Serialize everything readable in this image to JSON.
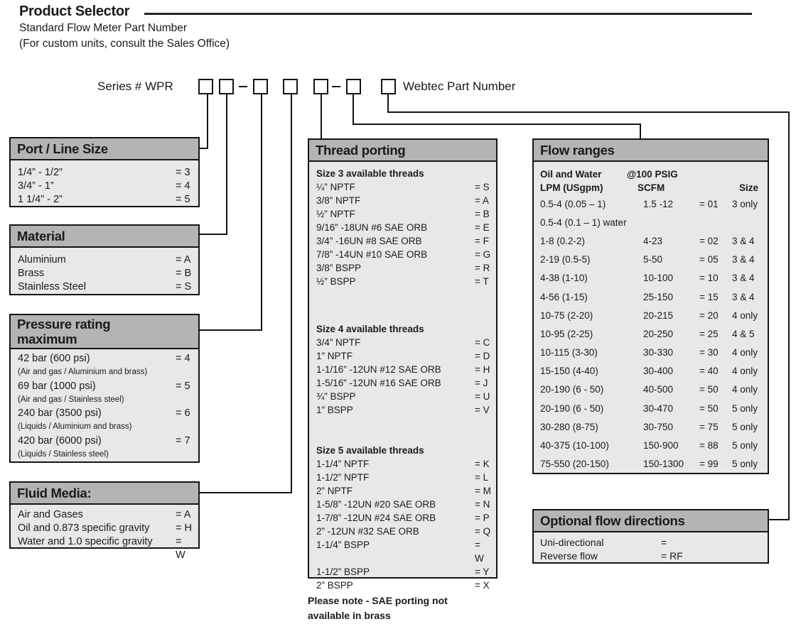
{
  "page": {
    "title": "Product Selector",
    "subtitle1": "Standard Flow Meter Part Number",
    "subtitle2": "(For custom units, consult the Sales Office)",
    "series_label": "Series #  WPR",
    "webtec_label": "Webtec Part Number",
    "note_line1": "Please note - SAE porting not",
    "note_line2": "available in brass"
  },
  "colors": {
    "table_header_bg": "#b4b4b4",
    "table_body_bg": "#e8e8e8",
    "line_color": "#151515"
  },
  "tables": {
    "port_line_size": {
      "title": "Port / Line Size",
      "rows": [
        {
          "label": "1/4” - 1/2”",
          "value": "= 3"
        },
        {
          "label": "3/4” - 1”",
          "value": "= 4"
        },
        {
          "label": "1 1/4” - 2”",
          "value": "= 5"
        }
      ]
    },
    "material": {
      "title": "Material",
      "rows": [
        {
          "label": "Aluminium",
          "value": "= A"
        },
        {
          "label": "Brass",
          "value": "= B"
        },
        {
          "label": "Stainless Steel",
          "value": "= S"
        }
      ]
    },
    "pressure_rating": {
      "title_line1": "Pressure rating",
      "title_line2": "maximum",
      "rows": [
        {
          "label": "42 bar (600 psi)",
          "value": "= 4",
          "note": "(Air and gas / Aluminium and brass)"
        },
        {
          "label": "69 bar (1000 psi)",
          "value": "= 5",
          "note": "(Air and gas / Stainless steel)"
        },
        {
          "label": "240 bar (3500 psi)",
          "value": "= 6",
          "note": "(Liquids / Aluminium and brass)"
        },
        {
          "label": "420 bar (6000 psi)",
          "value": "= 7",
          "note": "(Liquids / Stainless steel)"
        }
      ]
    },
    "fluid_media": {
      "title": "Fluid Media:",
      "rows": [
        {
          "label": "Air and Gases",
          "value": "= A"
        },
        {
          "label": "Oil and 0.873 specific gravity",
          "value": "= H"
        },
        {
          "label": "Water and 1.0 specific gravity",
          "value": "= W"
        }
      ]
    },
    "thread_porting": {
      "title": "Thread porting",
      "groups": [
        {
          "heading": "Size 3 available threads",
          "rows": [
            {
              "label": "¼” NPTF",
              "value": "= S"
            },
            {
              "label": "3/8” NPTF",
              "value": "= A"
            },
            {
              "label": "½” NPTF",
              "value": "= B"
            },
            {
              "label": "9/16” -18UN #6 SAE ORB",
              "value": "= E"
            },
            {
              "label": "3/4” -16UN #8 SAE ORB",
              "value": "= F"
            },
            {
              "label": "7/8” -14UN #10 SAE ORB",
              "value": "= G"
            },
            {
              "label": "3/8” BSPP",
              "value": "= R"
            },
            {
              "label": "½” BSPP",
              "value": "= T"
            }
          ]
        },
        {
          "heading": "Size 4 available threads",
          "rows": [
            {
              "label": "3/4” NPTF",
              "value": "= C"
            },
            {
              "label": "1” NPTF",
              "value": "= D"
            },
            {
              "label": "1-1/16” -12UN #12 SAE ORB",
              "value": "= H"
            },
            {
              "label": "1-5/16” -12UN #16 SAE ORB",
              "value": "= J"
            },
            {
              "label": "¾” BSPP",
              "value": "= U"
            },
            {
              "label": "1” BSPP",
              "value": "= V"
            }
          ]
        },
        {
          "heading": "Size 5 available threads",
          "rows": [
            {
              "label": "1-1/4” NPTF",
              "value": "= K"
            },
            {
              "label": "1-1/2” NPTF",
              "value": "= L"
            },
            {
              "label": "2” NPTF",
              "value": "= M"
            },
            {
              "label": "1-5/8” -12UN #20 SAE ORB",
              "value": "= N"
            },
            {
              "label": "1-7/8” -12UN #24 SAE ORB",
              "value": "= P"
            },
            {
              "label": "2” -12UN #32 SAE ORB",
              "value": "= Q"
            },
            {
              "label": "1-1/4” BSPP",
              "value": "= W"
            },
            {
              "label": "1-1/2” BSPP",
              "value": "= Y"
            },
            {
              "label": "2” BSPP",
              "value": "= X"
            }
          ]
        }
      ]
    },
    "flow_ranges": {
      "title": "Flow ranges",
      "header": {
        "col1_line1": "Oil and Water",
        "col1_line2": "LPM (USgpm)",
        "col2_line1": "@100 PSIG",
        "col2_line2": "SCFM",
        "size": "Size"
      },
      "rows": [
        {
          "lpm": "0.5-4 (0.05 – 1)",
          "scfm": "1.5 -12",
          "code": "= 01",
          "size": "3 only"
        },
        {
          "lpm": "0.5-4 (0.1 – 1) water",
          "scfm": "",
          "code": "",
          "size": ""
        },
        {
          "lpm": "1-8 (0.2-2)",
          "scfm": "4-23",
          "code": "= 02",
          "size": "3 & 4"
        },
        {
          "lpm": "2-19 (0.5-5)",
          "scfm": "5-50",
          "code": "= 05",
          "size": "3 & 4"
        },
        {
          "lpm": "4-38 (1-10)",
          "scfm": "10-100",
          "code": "= 10",
          "size": "3 & 4"
        },
        {
          "lpm": "4-56 (1-15)",
          "scfm": "25-150",
          "code": "= 15",
          "size": "3 & 4"
        },
        {
          "lpm": "10-75 (2-20)",
          "scfm": "20-215",
          "code": "= 20",
          "size": "4 only"
        },
        {
          "lpm": "10-95 (2-25)",
          "scfm": "20-250",
          "code": "= 25",
          "size": "4 & 5"
        },
        {
          "lpm": "10-115 (3-30)",
          "scfm": "30-330",
          "code": "= 30",
          "size": "4 only"
        },
        {
          "lpm": "15-150 (4-40)",
          "scfm": "30-400",
          "code": "= 40",
          "size": "4 only"
        },
        {
          "lpm": "20-190 (6 - 50)",
          "scfm": "40-500",
          "code": "= 50",
          "size": "4 only"
        },
        {
          "lpm": "20-190 (6 - 50)",
          "scfm": "30-470",
          "code": "= 50",
          "size": "5 only"
        },
        {
          "lpm": "30-280 (8-75)",
          "scfm": "30-750",
          "code": "= 75",
          "size": "5 only"
        },
        {
          "lpm": "40-375 (10-100)",
          "scfm": "150-900",
          "code": "= 88",
          "size": "5 only"
        },
        {
          "lpm": "75-550 (20-150)",
          "scfm": "150-1300",
          "code": "= 99",
          "size": "5 only"
        }
      ]
    },
    "optional_flow": {
      "title": "Optional flow directions",
      "rows": [
        {
          "label": "Uni-directional",
          "value": "="
        },
        {
          "label": "Reverse flow",
          "value": "= RF"
        }
      ]
    }
  }
}
